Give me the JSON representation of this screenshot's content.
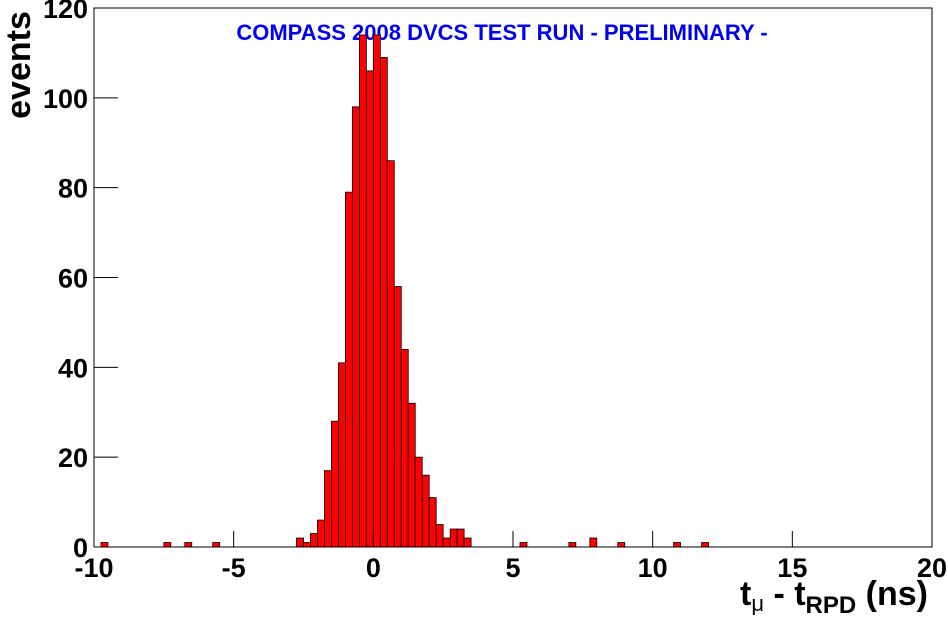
{
  "chart_data": {
    "type": "histogram",
    "title": "COMPASS 2008 DVCS TEST RUN  - PRELIMINARY -",
    "xlabel": [
      "t",
      "μ",
      " - t",
      "RPD",
      " (ns)"
    ],
    "ylabel": "events",
    "bins": [
      -10,
      -9.75,
      -9.5,
      -9.25,
      -9,
      -8.75,
      -8.5,
      -8.25,
      -8,
      -7.75,
      -7.5,
      -7.25,
      -7,
      -6.75,
      -6.5,
      -6.25,
      -6,
      -5.75,
      -5.5,
      -5.25,
      -5,
      -4.75,
      -4.5,
      -4.25,
      -4,
      -3.75,
      -3.5,
      -3.25,
      -3,
      -2.75,
      -2.5,
      -2.25,
      -2,
      -1.75,
      -1.5,
      -1.25,
      -1,
      -0.75,
      -0.5,
      -0.25,
      0,
      0.25,
      0.5,
      0.75,
      1,
      1.25,
      1.5,
      1.75,
      2,
      2.25,
      2.5,
      2.75,
      3,
      3.25,
      3.5,
      3.75,
      4,
      4.25,
      4.5,
      4.75,
      5,
      5.25,
      5.5,
      5.75,
      6,
      6.25,
      6.5,
      6.75,
      7,
      7.25,
      7.5,
      7.75,
      8,
      8.25,
      8.5,
      8.75,
      9,
      9.25,
      9.5,
      9.75,
      10,
      10.25,
      10.5,
      10.75,
      11,
      11.25,
      11.5,
      11.75,
      12,
      12.25,
      12.5,
      12.75,
      13,
      13.25,
      13.5,
      13.75,
      14,
      14.25,
      14.5,
      14.75,
      15,
      15.25,
      15.5,
      15.75,
      16,
      16.25,
      16.5,
      16.75,
      17,
      17.25,
      17.5,
      17.75,
      18,
      18.25,
      18.5,
      18.75,
      19,
      19.25,
      19.5,
      19.75,
      20
    ],
    "values": [
      0,
      1,
      0,
      0,
      0,
      0,
      0,
      0,
      0,
      0,
      1,
      0,
      0,
      1,
      0,
      0,
      0,
      1,
      0,
      0,
      0,
      0,
      0,
      0,
      0,
      0,
      0,
      0,
      0,
      2,
      1,
      3,
      6,
      17,
      28,
      41,
      79,
      98,
      114,
      106,
      114,
      109,
      86,
      58,
      44,
      32,
      20,
      16,
      11,
      5,
      2,
      4,
      4,
      2,
      0,
      0,
      0,
      0,
      0,
      0,
      0,
      1,
      0,
      0,
      0,
      0,
      0,
      0,
      1,
      0,
      0,
      2,
      0,
      0,
      0,
      1,
      0,
      0,
      0,
      0,
      0,
      0,
      0,
      1,
      0,
      0,
      0,
      1,
      0,
      0,
      0,
      0,
      0,
      0,
      0,
      0,
      0,
      0,
      0,
      0,
      0,
      0,
      0,
      0,
      0,
      0,
      0,
      0,
      0,
      0,
      0,
      0,
      0,
      0,
      0,
      0,
      0,
      0,
      0,
      0
    ],
    "color": "#ff0000",
    "title_color": "#0000ee",
    "xlim": [
      -10,
      20
    ],
    "xticks": [
      -10,
      -5,
      0,
      5,
      10,
      15,
      20
    ],
    "ylim": [
      0,
      120
    ],
    "yticks": [
      0,
      20,
      40,
      60,
      80,
      100,
      120
    ]
  }
}
